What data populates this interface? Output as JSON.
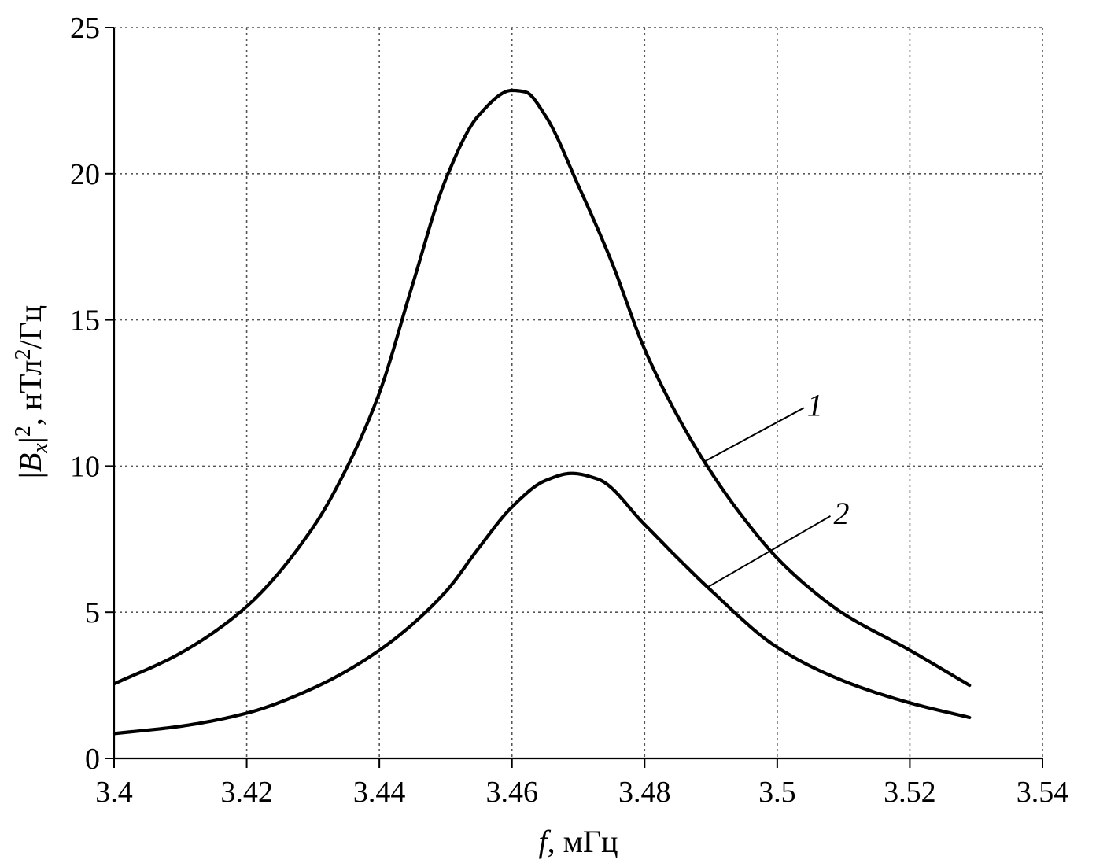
{
  "chart_data": {
    "type": "line",
    "title": "",
    "xlabel_var": "f",
    "xlabel_unit": ", мГц",
    "ylabel_prefix": "|",
    "ylabel_var": "B",
    "ylabel_sub": "x",
    "ylabel_mid": "|",
    "ylabel_sup": "2",
    "ylabel_unit_a": ", нТл",
    "ylabel_unit_sup": "2",
    "ylabel_unit_b": "/Гц",
    "xlim": [
      3.4,
      3.54
    ],
    "ylim": [
      0,
      25
    ],
    "xticks": [
      3.4,
      3.42,
      3.44,
      3.46,
      3.48,
      3.5,
      3.52,
      3.54
    ],
    "xtick_labels": [
      "3.4",
      "3.42",
      "3.44",
      "3.46",
      "3.48",
      "3.5",
      "3.52",
      "3.54"
    ],
    "yticks": [
      0,
      5,
      10,
      15,
      20,
      25
    ],
    "ytick_labels": [
      "0",
      "5",
      "10",
      "15",
      "20",
      "25"
    ],
    "grid": true,
    "series": [
      {
        "name": "1",
        "x": [
          3.4,
          3.41,
          3.42,
          3.43,
          3.435,
          3.44,
          3.445,
          3.45,
          3.455,
          3.46,
          3.462,
          3.465,
          3.47,
          3.475,
          3.48,
          3.485,
          3.49,
          3.495,
          3.5,
          3.505,
          3.51,
          3.52,
          3.529
        ],
        "y": [
          2.55,
          3.6,
          5.2,
          7.9,
          9.9,
          12.5,
          16.2,
          19.8,
          22.0,
          22.85,
          22.8,
          22.0,
          19.6,
          17.0,
          14.0,
          11.7,
          9.8,
          8.2,
          6.85,
          5.8,
          4.95,
          3.7,
          2.5
        ]
      },
      {
        "name": "2",
        "x": [
          3.4,
          3.41,
          3.42,
          3.43,
          3.44,
          3.45,
          3.455,
          3.46,
          3.465,
          3.469,
          3.473,
          3.48,
          3.485,
          3.49,
          3.5,
          3.51,
          3.52,
          3.529
        ],
        "y": [
          0.85,
          1.1,
          1.55,
          2.4,
          3.7,
          5.7,
          7.2,
          8.6,
          9.5,
          9.75,
          9.55,
          8.0,
          6.85,
          5.75,
          3.8,
          2.65,
          1.9,
          1.4
        ]
      }
    ],
    "annotations": [
      {
        "text": "1",
        "series": 0,
        "at_x": 3.489,
        "label_x": 3.5045,
        "label_y": 12.1
      },
      {
        "text": "2",
        "series": 1,
        "at_x": 3.4895,
        "label_x": 3.5085,
        "label_y": 8.4
      }
    ]
  }
}
